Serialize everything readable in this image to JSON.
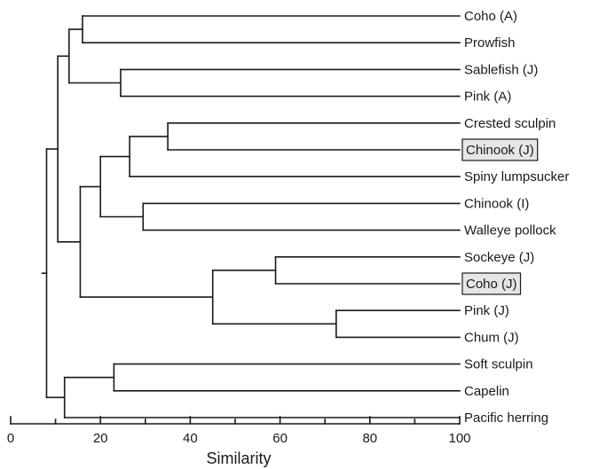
{
  "diagram": {
    "type": "dendrogram",
    "axis": {
      "label": "Similarity",
      "min": 0,
      "max": 100,
      "ticks": [
        0,
        20,
        40,
        60,
        80,
        100
      ]
    },
    "leaves": [
      {
        "label": "Coho (A)",
        "highlighted": false
      },
      {
        "label": "Prowfish",
        "highlighted": false
      },
      {
        "label": "Sablefish (J)",
        "highlighted": false
      },
      {
        "label": "Pink (A)",
        "highlighted": false
      },
      {
        "label": "Crested sculpin",
        "highlighted": false
      },
      {
        "label": "Chinook (J)",
        "highlighted": true
      },
      {
        "label": "Spiny lumpsucker",
        "highlighted": false
      },
      {
        "label": "Chinook (I)",
        "highlighted": false
      },
      {
        "label": "Walleye pollock",
        "highlighted": false
      },
      {
        "label": "Sockeye (J)",
        "highlighted": false
      },
      {
        "label": "Coho (J)",
        "highlighted": true
      },
      {
        "label": "Pink (J)",
        "highlighted": false
      },
      {
        "label": "Chum (J)",
        "highlighted": false
      },
      {
        "label": "Soft sculpin",
        "highlighted": false
      },
      {
        "label": "Capelin",
        "highlighted": false
      },
      {
        "label": "Pacific herring",
        "highlighted": false
      }
    ],
    "merges": [
      {
        "id": "m1",
        "left": "L0",
        "right": "L1",
        "similarity": 16
      },
      {
        "id": "m2",
        "left": "L2",
        "right": "L3",
        "similarity": 24.5
      },
      {
        "id": "m3",
        "left": "m1",
        "right": "m2",
        "similarity": 13
      },
      {
        "id": "m4",
        "left": "L4",
        "right": "L5",
        "similarity": 35
      },
      {
        "id": "m5",
        "left": "m4",
        "right": "L6",
        "similarity": 26.5
      },
      {
        "id": "m6",
        "left": "L7",
        "right": "L8",
        "similarity": 29.5
      },
      {
        "id": "m7",
        "left": "m5",
        "right": "m6",
        "similarity": 20
      },
      {
        "id": "m8",
        "left": "L9",
        "right": "L10",
        "similarity": 59
      },
      {
        "id": "m9",
        "left": "L11",
        "right": "L12",
        "similarity": 72.5
      },
      {
        "id": "m10",
        "left": "m8",
        "right": "m9",
        "similarity": 45
      },
      {
        "id": "m11",
        "left": "m7",
        "right": "m10",
        "similarity": 15.5
      },
      {
        "id": "m12",
        "left": "m3",
        "right": "m11",
        "similarity": 10.5
      },
      {
        "id": "m13",
        "left": "L13",
        "right": "L14",
        "similarity": 23
      },
      {
        "id": "m14",
        "left": "m13",
        "right": "L15",
        "similarity": 12
      },
      {
        "id": "m15",
        "left": "m12",
        "right": "m14",
        "similarity": 8
      }
    ],
    "colors": {
      "line": "#1a1a1a",
      "highlight_fill": "#e6e6e6",
      "background": "#ffffff"
    }
  }
}
